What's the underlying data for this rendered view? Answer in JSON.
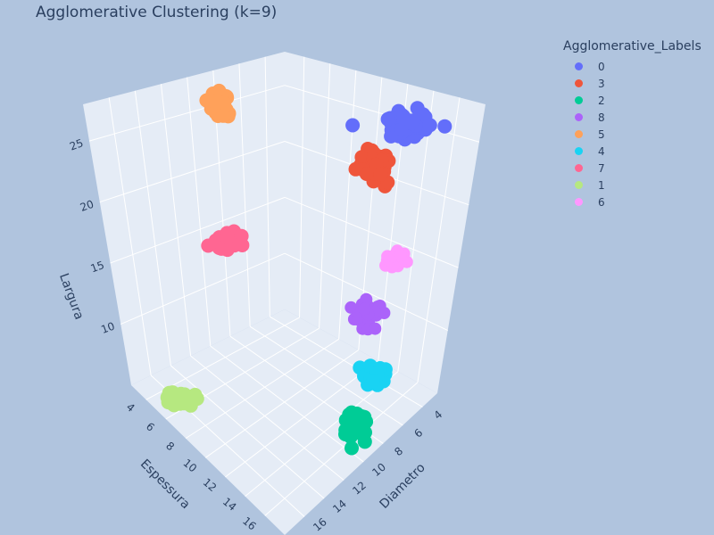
{
  "chart_data": {
    "type": "scatter",
    "title": "Agglomerative Clustering (k=9)",
    "axes": {
      "x": {
        "label": "Diametro",
        "ticks": [
          "4",
          "6",
          "8",
          "10",
          "12",
          "14",
          "16"
        ]
      },
      "y": {
        "label": "Espessura",
        "ticks": [
          "4",
          "6",
          "8",
          "10",
          "12",
          "14",
          "16"
        ]
      },
      "z": {
        "label": "Largura",
        "ticks": [
          "10",
          "15",
          "20",
          "25"
        ]
      }
    },
    "legend": {
      "title": "Agglomerative_Labels",
      "placement": "top-right",
      "entries": [
        {
          "name": "0",
          "color": "#636efa"
        },
        {
          "name": "3",
          "color": "#ef553b"
        },
        {
          "name": "2",
          "color": "#00cc96"
        },
        {
          "name": "8",
          "color": "#ab63fa"
        },
        {
          "name": "5",
          "color": "#ffa15a"
        },
        {
          "name": "4",
          "color": "#19d3f3"
        },
        {
          "name": "7",
          "color": "#ff6692"
        },
        {
          "name": "1",
          "color": "#b6e880"
        },
        {
          "name": "6",
          "color": "#ff97ff"
        }
      ]
    },
    "clusters": [
      {
        "label": "0",
        "color": "#636efa",
        "count": 60
      },
      {
        "label": "3",
        "color": "#ef553b",
        "count": 40
      },
      {
        "label": "2",
        "color": "#00cc96",
        "count": 45
      },
      {
        "label": "8",
        "color": "#ab63fa",
        "count": 30
      },
      {
        "label": "5",
        "color": "#ffa15a",
        "count": 35
      },
      {
        "label": "4",
        "color": "#19d3f3",
        "count": 25
      },
      {
        "label": "7",
        "color": "#ff6692",
        "count": 35
      },
      {
        "label": "1",
        "color": "#b6e880",
        "count": 35
      },
      {
        "label": "6",
        "color": "#ff97ff",
        "count": 25
      }
    ]
  }
}
